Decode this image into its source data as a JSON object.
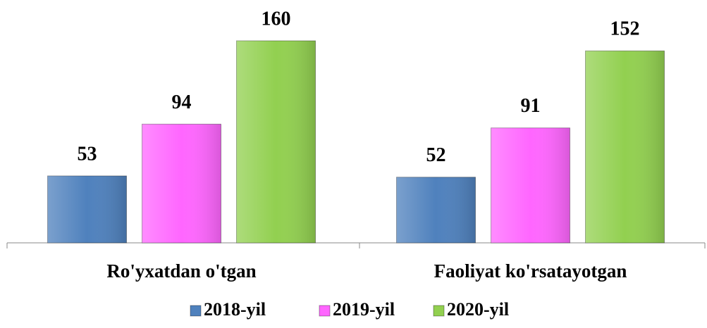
{
  "chart_data": {
    "type": "bar",
    "categories": [
      "Ro'yxatdan o'tgan",
      "Faoliyat ko'rsatayotgan"
    ],
    "series": [
      {
        "name": "2018-yil",
        "color": "#4f81bd",
        "values": [
          53,
          52
        ]
      },
      {
        "name": "2019-yil",
        "color": "#ff66ff",
        "values": [
          94,
          91
        ]
      },
      {
        "name": "2020-yil",
        "color": "#92d050",
        "values": [
          160,
          152
        ]
      }
    ],
    "legend": "bottom"
  }
}
